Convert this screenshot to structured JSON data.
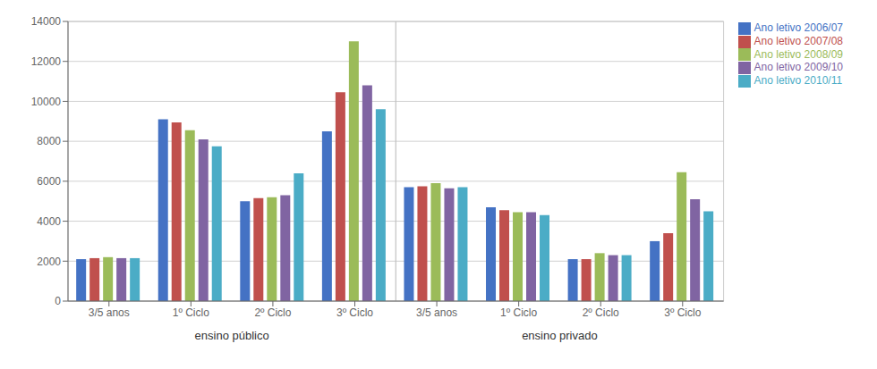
{
  "chart_data": {
    "type": "bar",
    "categories": [
      "3/5 anos",
      "1º Ciclo",
      "2º Ciclo",
      "3º Ciclo",
      "3/5 anos",
      "1º Ciclo",
      "2º Ciclo",
      "3º Ciclo"
    ],
    "series": [
      {
        "name": "Ano letivo 2006/07",
        "color": "#4472C4",
        "values": [
          2100,
          9100,
          5000,
          8500,
          5700,
          4700,
          2100,
          3000
        ]
      },
      {
        "name": "Ano letivo 2007/08",
        "color": "#C0504D",
        "values": [
          2150,
          8950,
          5150,
          10450,
          5750,
          4550,
          2100,
          3400
        ]
      },
      {
        "name": "Ano letivo 2008/09",
        "color": "#9BBB59",
        "values": [
          2200,
          8550,
          5200,
          13000,
          5900,
          4450,
          2400,
          6450
        ]
      },
      {
        "name": "Ano letivo 2009/10",
        "color": "#8064A2",
        "values": [
          2150,
          8100,
          5300,
          10800,
          5650,
          4450,
          2300,
          5100
        ]
      },
      {
        "name": "Ano letivo 2010/11",
        "color": "#4BACC6",
        "values": [
          2150,
          7750,
          6400,
          9600,
          5700,
          4300,
          2300,
          4500
        ]
      }
    ],
    "ylim": [
      0,
      14000
    ],
    "yticks": [
      0,
      2000,
      4000,
      6000,
      8000,
      10000,
      12000,
      14000
    ],
    "grid": true,
    "legend": "right",
    "annotations": [
      {
        "text": "ensino público",
        "span": [
          0,
          3
        ]
      },
      {
        "text": "ensino privado",
        "span": [
          4,
          7
        ]
      }
    ]
  }
}
